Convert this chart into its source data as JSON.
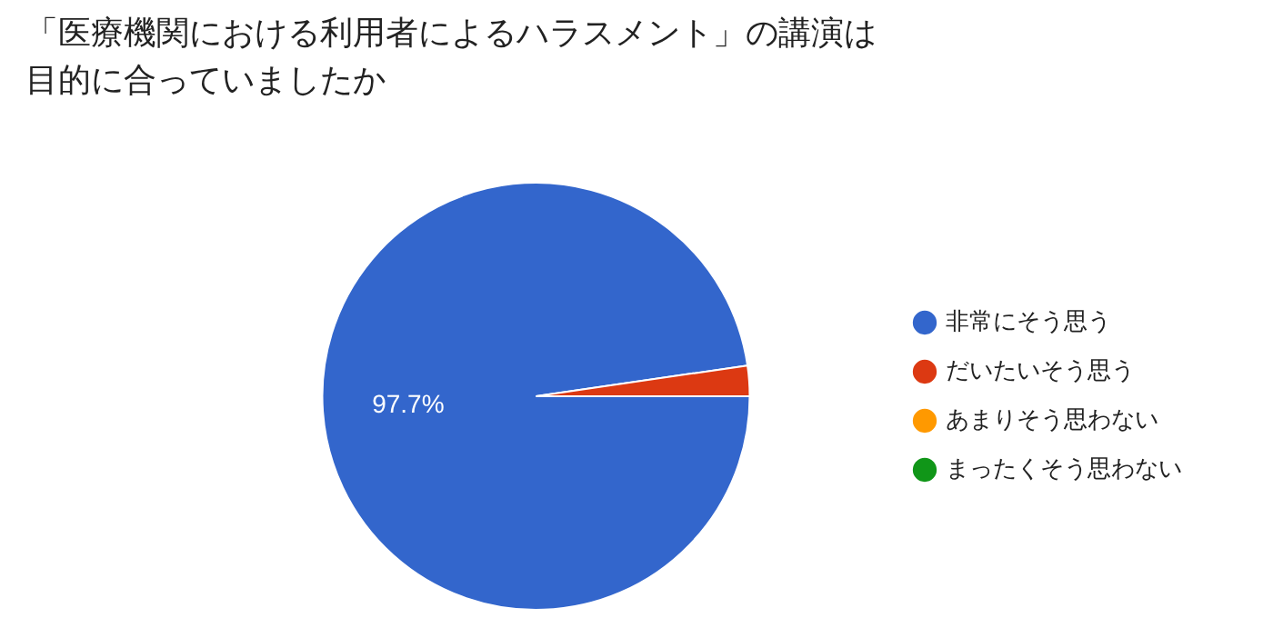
{
  "chart_data": {
    "type": "pie",
    "title": "「医療機関における利用者によるハラスメント」の講演は目的に合っていましたか",
    "categories": [
      "非常にそう思う",
      "だいたいそう思う",
      "あまりそう思わない",
      "まったくそう思わない"
    ],
    "values": [
      97.7,
      2.3,
      0,
      0
    ],
    "colors": [
      "#3366cc",
      "#dc3912",
      "#ff9900",
      "#109618"
    ],
    "value_labels": [
      "97.7%",
      null,
      null,
      null
    ],
    "legend": "right"
  }
}
